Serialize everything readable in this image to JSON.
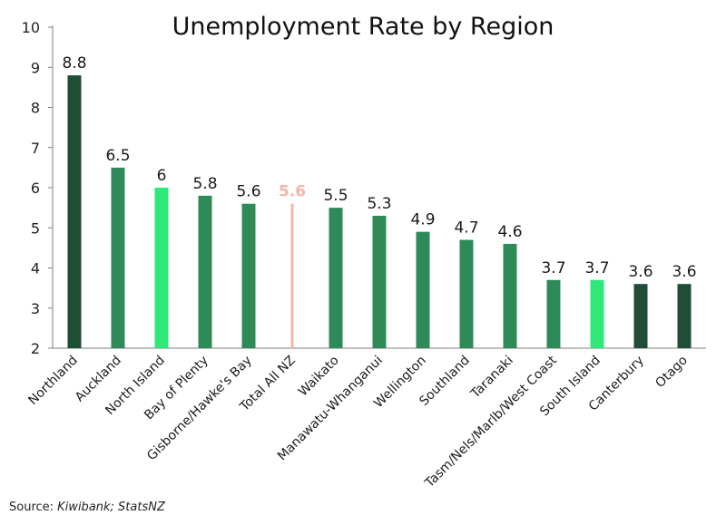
{
  "chart_data": {
    "type": "bar",
    "title": "Unemployment Rate by Region",
    "xlabel": "",
    "ylabel": "",
    "ylim": [
      2,
      10
    ],
    "yticks": [
      2,
      3,
      4,
      5,
      6,
      7,
      8,
      9,
      10
    ],
    "grid": false,
    "categories": [
      "Northland",
      "Auckland",
      "North Island",
      "Bay of Plenty",
      "Gisborne/Hawke's Bay",
      "Total All NZ",
      "Waikato",
      "Manawatu-Whanganui",
      "Wellington",
      "Southland",
      "Taranaki",
      "Tasm/Nels/Marlb/West Coast",
      "South Island",
      "Canterbury",
      "Otago"
    ],
    "values": [
      8.8,
      6.5,
      6,
      5.8,
      5.6,
      5.6,
      5.5,
      5.3,
      4.9,
      4.7,
      4.6,
      3.7,
      3.7,
      3.6,
      3.6
    ],
    "value_labels": [
      "8.8",
      "6.5",
      "6",
      "5.8",
      "5.6",
      "5.6",
      "5.5",
      "5.3",
      "4.9",
      "4.7",
      "4.6",
      "3.7",
      "3.7",
      "3.6",
      "3.6"
    ],
    "bar_colors": [
      "#1f4d36",
      "#2e8b57",
      "#2ee87a",
      "#2e8b57",
      "#2e8b57",
      "#f4b6a8",
      "#2e8b57",
      "#2e8b57",
      "#2e8b57",
      "#2e8b57",
      "#2e8b57",
      "#2e8b57",
      "#2ee87a",
      "#1f4d36",
      "#1f4d36"
    ],
    "highlight_index": 5,
    "highlight_label_color": "#f4b6a8"
  },
  "source": {
    "prefix": "Source: ",
    "text": "Kiwibank; StatsNZ"
  }
}
